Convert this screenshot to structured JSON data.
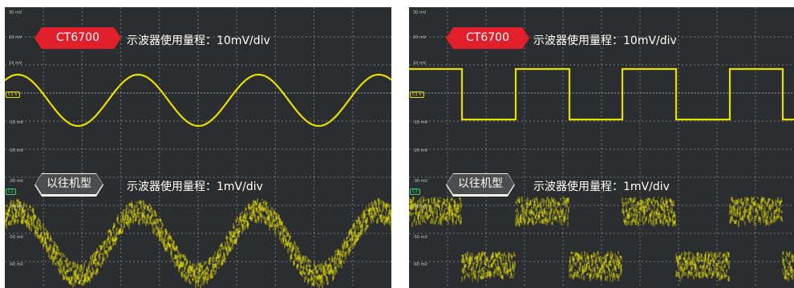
{
  "panels": [
    {
      "id": "left",
      "y_labels": [
        "30 mV",
        "20 mV",
        "10 mV",
        "-10 mV",
        "-20 mV",
        "-30 mV",
        "-40 mV",
        "-50 mV",
        "-60 mV"
      ],
      "badge_top": "CT6700",
      "caption_top": "示波器使用量程：10mV/div",
      "badge_bottom": "以往机型",
      "caption_bottom": "示波器使用量程：1mV/div",
      "marker_top": "C1",
      "marker_top_unit": "V",
      "marker_bottom": "C2",
      "waveform": "sine"
    },
    {
      "id": "right",
      "y_labels": [
        "30 mV",
        "20 mV",
        "10 mV",
        "-10 mV",
        "-20 mV",
        "-30 mV",
        "-40 mV",
        "-50 mV",
        "-60 mV"
      ],
      "badge_top": "CT6700",
      "caption_top": "示波器使用量程：10mV/div",
      "badge_bottom": "以往机型",
      "caption_bottom": "示波器使用量程：1mV/div",
      "marker_top": "C1",
      "marker_top_unit": "V",
      "marker_bottom": "C2",
      "waveform": "square"
    }
  ],
  "colors": {
    "trace": "#e6e000",
    "trace_noisy": "#dcd60a",
    "badge_red": "#e2202c",
    "badge_gray": "#4b4d4f",
    "screen": "#2b2d2e"
  }
}
